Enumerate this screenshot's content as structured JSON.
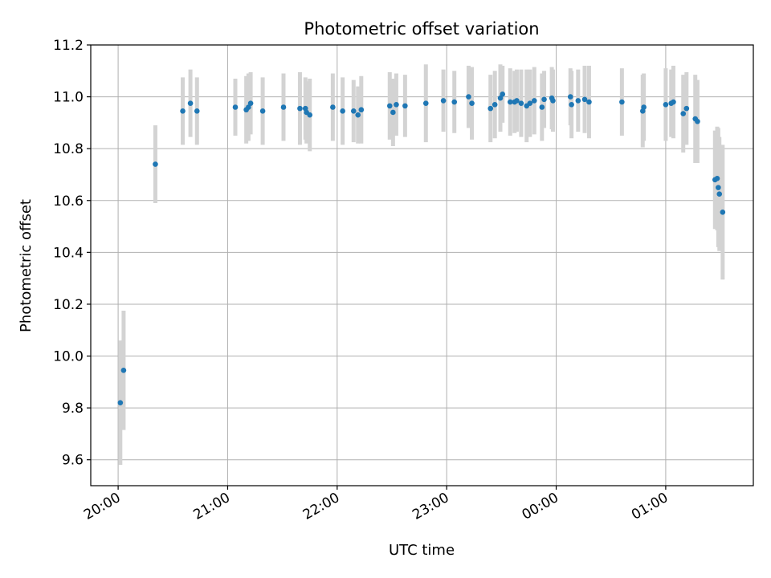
{
  "chart_data": {
    "type": "scatter",
    "title": "Photometric offset variation",
    "xlabel": "UTC time",
    "ylabel": "Photometric offset",
    "ylim": [
      9.5,
      11.2
    ],
    "xlim": [
      -0.25,
      5.8
    ],
    "x_unit": "hours after 20:00",
    "grid": true,
    "x_tick_labels": [
      "20:00",
      "21:00",
      "22:00",
      "23:00",
      "00:00",
      "01:00"
    ],
    "x_tick_values": [
      0,
      1,
      2,
      3,
      4,
      5
    ],
    "y_tick_values": [
      9.6,
      9.8,
      10.0,
      10.2,
      10.4,
      10.6,
      10.8,
      11.0,
      11.2
    ],
    "y_tick_labels": [
      "9.6",
      "9.8",
      "10.0",
      "10.2",
      "10.4",
      "10.6",
      "10.8",
      "11.0",
      "11.2"
    ],
    "colors": {
      "points": "#1f77b4",
      "errorbars": "#d3d3d3"
    },
    "series": [
      {
        "x": [
          0.02,
          0.05,
          0.34,
          0.59,
          0.66,
          0.72,
          1.07,
          1.17,
          1.19,
          1.21,
          1.32,
          1.51,
          1.66,
          1.71,
          1.72,
          1.75,
          1.96,
          2.05,
          2.15,
          2.19,
          2.22,
          2.48,
          2.51,
          2.54,
          2.62,
          2.81,
          2.97,
          3.07,
          3.2,
          3.23,
          3.4,
          3.44,
          3.49,
          3.51,
          3.58,
          3.62,
          3.64,
          3.68,
          3.73,
          3.76,
          3.8,
          3.87,
          3.89,
          3.96,
          3.97,
          4.13,
          4.14,
          4.2,
          4.26,
          4.3,
          4.6,
          4.79,
          4.8,
          5.0,
          5.05,
          5.07,
          5.16,
          5.19,
          5.27,
          5.29,
          5.45,
          5.47,
          5.48,
          5.49,
          5.52
        ],
        "y": [
          9.82,
          9.945,
          10.74,
          10.945,
          10.975,
          10.945,
          10.96,
          10.95,
          10.96,
          10.975,
          10.945,
          10.96,
          10.955,
          10.955,
          10.94,
          10.93,
          10.96,
          10.945,
          10.945,
          10.93,
          10.95,
          10.965,
          10.94,
          10.97,
          10.965,
          10.975,
          10.985,
          10.98,
          11.0,
          10.975,
          10.955,
          10.97,
          10.995,
          11.01,
          10.98,
          10.98,
          10.985,
          10.975,
          10.965,
          10.975,
          10.985,
          10.96,
          10.99,
          10.995,
          10.985,
          11.0,
          10.97,
          10.985,
          10.99,
          10.98,
          10.98,
          10.945,
          10.96,
          10.97,
          10.975,
          10.98,
          10.935,
          10.955,
          10.915,
          10.905,
          10.68,
          10.685,
          10.65,
          10.625,
          10.555
        ],
        "err": [
          0.24,
          0.23,
          0.15,
          0.13,
          0.13,
          0.13,
          0.11,
          0.13,
          0.13,
          0.12,
          0.13,
          0.13,
          0.14,
          0.12,
          0.12,
          0.14,
          0.13,
          0.13,
          0.12,
          0.11,
          0.13,
          0.13,
          0.13,
          0.12,
          0.12,
          0.15,
          0.12,
          0.12,
          0.12,
          0.14,
          0.13,
          0.13,
          0.13,
          0.11,
          0.13,
          0.12,
          0.12,
          0.13,
          0.14,
          0.13,
          0.13,
          0.13,
          0.11,
          0.12,
          0.12,
          0.11,
          0.13,
          0.12,
          0.13,
          0.14,
          0.13,
          0.14,
          0.13,
          0.14,
          0.13,
          0.14,
          0.15,
          0.14,
          0.17,
          0.16,
          0.19,
          0.2,
          0.23,
          0.22,
          0.26
        ]
      }
    ]
  }
}
